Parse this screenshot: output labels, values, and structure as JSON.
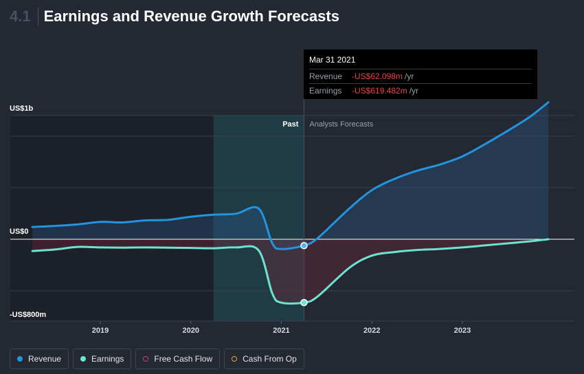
{
  "header": {
    "section_number": "4.1",
    "title": "Earnings and Revenue Growth Forecasts"
  },
  "tooltip": {
    "date": "Mar 31 2021",
    "rows": [
      {
        "label": "Revenue",
        "value": "-US$62.098m",
        "unit": "/yr"
      },
      {
        "label": "Earnings",
        "value": "-US$619.482m",
        "unit": "/yr"
      }
    ]
  },
  "chart_labels": {
    "past": "Past",
    "forecast": "Analysts Forecasts"
  },
  "legend": [
    {
      "label": "Revenue",
      "color": "#2394df",
      "filled": true
    },
    {
      "label": "Earnings",
      "color": "#6fe3d2",
      "filled": true
    },
    {
      "label": "Free Cash Flow",
      "color": "#c7407a",
      "filled": false
    },
    {
      "label": "Cash From Op",
      "color": "#e6a64c",
      "filled": false
    }
  ],
  "chart_data": {
    "type": "line",
    "y_unit": "US$ millions",
    "ylim": [
      -800,
      1200
    ],
    "y_ticks": [
      {
        "value": 1000,
        "label": "US$1b"
      },
      {
        "value": 0,
        "label": "US$0"
      },
      {
        "value": -800,
        "label": "-US$800m"
      }
    ],
    "x_range": [
      2018.1,
      2024.0
    ],
    "x_ticks": [
      "2019",
      "2020",
      "2021",
      "2022",
      "2023"
    ],
    "past_shaded_from": 2020.25,
    "forecast_from": 2021.25,
    "series": [
      {
        "name": "Revenue",
        "color": "#2394df",
        "points": [
          [
            2018.25,
            120
          ],
          [
            2018.5,
            130
          ],
          [
            2018.75,
            145
          ],
          [
            2019.0,
            170
          ],
          [
            2019.25,
            165
          ],
          [
            2019.5,
            185
          ],
          [
            2019.75,
            190
          ],
          [
            2020.0,
            220
          ],
          [
            2020.25,
            240
          ],
          [
            2020.5,
            250
          ],
          [
            2020.75,
            300
          ],
          [
            2020.9,
            -40
          ],
          [
            2021.0,
            -95
          ],
          [
            2021.25,
            -62
          ],
          [
            2021.4,
            10
          ],
          [
            2021.75,
            300
          ],
          [
            2022.0,
            480
          ],
          [
            2022.25,
            590
          ],
          [
            2022.5,
            670
          ],
          [
            2022.75,
            730
          ],
          [
            2023.0,
            810
          ],
          [
            2023.25,
            930
          ],
          [
            2023.5,
            1060
          ],
          [
            2023.75,
            1200
          ],
          [
            2023.95,
            1340
          ]
        ]
      },
      {
        "name": "Earnings",
        "color": "#6fe3d2",
        "points": [
          [
            2018.25,
            -115
          ],
          [
            2018.5,
            -100
          ],
          [
            2018.75,
            -75
          ],
          [
            2019.0,
            -80
          ],
          [
            2019.25,
            -82
          ],
          [
            2019.5,
            -80
          ],
          [
            2019.75,
            -82
          ],
          [
            2020.0,
            -85
          ],
          [
            2020.25,
            -88
          ],
          [
            2020.5,
            -80
          ],
          [
            2020.75,
            -110
          ],
          [
            2020.9,
            -530
          ],
          [
            2021.0,
            -620
          ],
          [
            2021.25,
            -619
          ],
          [
            2021.4,
            -560
          ],
          [
            2021.75,
            -280
          ],
          [
            2022.0,
            -160
          ],
          [
            2022.25,
            -125
          ],
          [
            2022.5,
            -105
          ],
          [
            2022.75,
            -95
          ],
          [
            2023.0,
            -80
          ],
          [
            2023.25,
            -60
          ],
          [
            2023.5,
            -40
          ],
          [
            2023.75,
            -20
          ],
          [
            2023.95,
            0
          ]
        ]
      }
    ],
    "highlight": {
      "x": 2021.25,
      "revenue": -62.098,
      "earnings": -619.482
    }
  }
}
